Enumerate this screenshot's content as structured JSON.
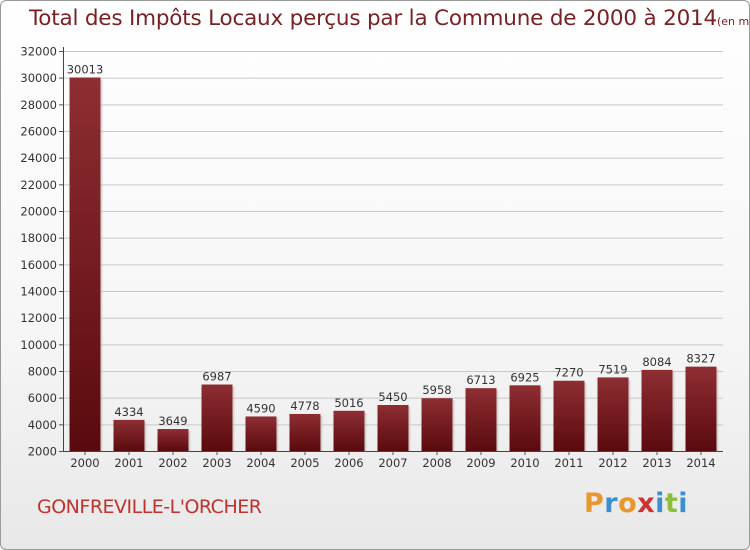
{
  "title": {
    "main": "Total des Impôts Locaux perçus par la Commune de 2000 à 2014",
    "unit": "(en milliers d'€)"
  },
  "commune_name": "GONFREVILLE-L'ORCHER",
  "logo": {
    "letters": [
      "P",
      "r",
      "o",
      "x",
      "i",
      "t",
      "i"
    ],
    "colors": [
      "#e8962e",
      "#3a8fd0",
      "#e8962e",
      "#cc3333",
      "#3a8fd0",
      "#8cbf3a",
      "#3a8fd0"
    ]
  },
  "colors": {
    "bar_top": "#8e2e33",
    "bar_bottom": "#5a0a0e",
    "title": "#7a2125",
    "commune": "#c0322e"
  },
  "chart_data": {
    "type": "bar",
    "categories": [
      "2000",
      "2001",
      "2002",
      "2003",
      "2004",
      "2005",
      "2006",
      "2007",
      "2008",
      "2009",
      "2010",
      "2011",
      "2012",
      "2013",
      "2014"
    ],
    "values": [
      30013,
      4334,
      3649,
      6987,
      4590,
      4778,
      5016,
      5450,
      5958,
      6713,
      6925,
      7270,
      7519,
      8084,
      8327
    ],
    "ylim": [
      2000,
      32000
    ],
    "yticks": [
      2000,
      4000,
      6000,
      8000,
      10000,
      12000,
      14000,
      16000,
      18000,
      20000,
      22000,
      24000,
      26000,
      28000,
      30000,
      32000
    ],
    "grid": true,
    "data_labels": true
  }
}
